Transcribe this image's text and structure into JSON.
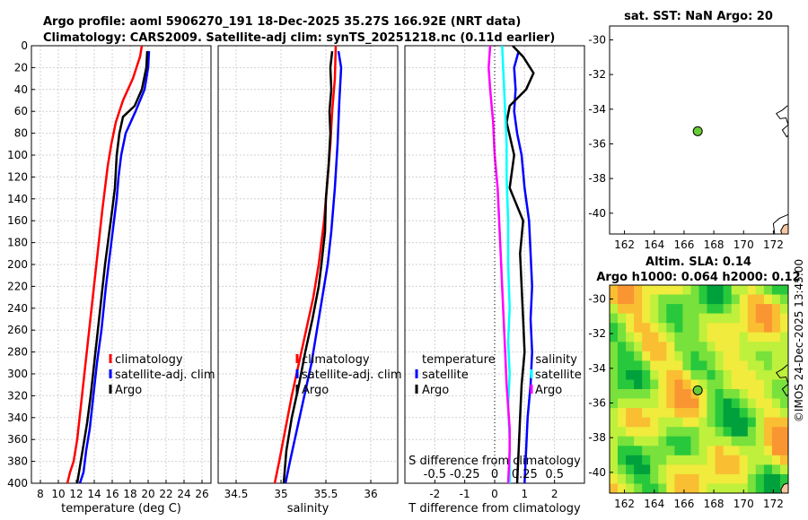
{
  "header": {
    "title_line1": "Argo profile: aoml 5906270_191 18-Dec-2025 35.27S 166.92E (NRT data)",
    "title_line2": "Climatology: CARS2009. Satellite-adj clim: synTS_20251218.nc (0.11d earlier)"
  },
  "colors": {
    "climatology": "#ff0000",
    "satellite": "#0000ff",
    "argo": "#000000",
    "sat_diff_temp": "#ff00ff",
    "sat_diff_sal": "#00ffff",
    "land": "#f7c6a3",
    "grid": "#d0d0d0"
  },
  "chart_data": [
    {
      "type": "line",
      "name": "temperature-profile",
      "xlabel": "temperature (deg C)",
      "xlim": [
        7,
        27
      ],
      "ylim": [
        0,
        400
      ],
      "xticks": [
        8,
        10,
        12,
        14,
        16,
        18,
        20,
        22,
        24,
        26
      ],
      "yticks": [
        0,
        20,
        40,
        60,
        80,
        100,
        120,
        140,
        160,
        180,
        200,
        220,
        240,
        260,
        280,
        300,
        320,
        340,
        360,
        380,
        400
      ],
      "legend": [
        "climatology",
        "satellite-adj. clim",
        "Argo"
      ],
      "series": [
        {
          "name": "climatology",
          "color": "#ff0000",
          "x": [
            19.3,
            19.1,
            18.3,
            17.2,
            16.4,
            15.9,
            15.5,
            15.2,
            14.9,
            14.5,
            14.1,
            13.7,
            13.3,
            12.9,
            12.5,
            12.1,
            11.7,
            11.3,
            11.0
          ],
          "y": [
            0,
            10,
            30,
            50,
            70,
            90,
            110,
            130,
            150,
            180,
            210,
            240,
            270,
            300,
            330,
            360,
            380,
            390,
            400
          ]
        },
        {
          "name": "satellite-adj. clim",
          "color": "#0000ff",
          "x": [
            20.1,
            20.0,
            19.6,
            18.6,
            17.5,
            17.0,
            16.7,
            16.5,
            16.2,
            15.9,
            15.3,
            14.8,
            14.3,
            13.9,
            13.5,
            13.1,
            12.8,
            12.4
          ],
          "y": [
            5,
            20,
            40,
            60,
            80,
            100,
            120,
            140,
            160,
            180,
            220,
            260,
            290,
            320,
            350,
            370,
            390,
            400
          ]
        },
        {
          "name": "Argo",
          "color": "#000000",
          "x": [
            19.9,
            19.8,
            19.3,
            18.5,
            17.2,
            16.8,
            16.5,
            16.3,
            16.0,
            15.6,
            15.2,
            14.8,
            14.4,
            14.0,
            13.6,
            13.2,
            12.8,
            12.4,
            12.1
          ],
          "y": [
            5,
            20,
            40,
            55,
            65,
            80,
            100,
            130,
            150,
            175,
            200,
            230,
            260,
            290,
            320,
            345,
            365,
            385,
            400
          ]
        }
      ]
    },
    {
      "type": "line",
      "name": "salinity-profile",
      "xlabel": "salinity",
      "xlim": [
        34.3,
        36.3
      ],
      "ylim": [
        0,
        400
      ],
      "xticks": [
        34.5,
        35,
        35.5,
        36
      ],
      "legend": [
        "climatology",
        "satellite-adj. clim",
        "Argo"
      ],
      "series": [
        {
          "name": "climatology",
          "color": "#ff0000",
          "x": [
            35.61,
            35.6,
            35.57,
            35.55,
            35.52,
            35.48,
            35.42,
            35.36,
            35.28,
            35.2,
            35.12,
            35.05,
            34.98,
            34.93
          ],
          "y": [
            0,
            30,
            60,
            90,
            120,
            160,
            200,
            230,
            260,
            290,
            320,
            350,
            380,
            400
          ]
        },
        {
          "name": "satellite-adj. clim",
          "color": "#0000ff",
          "x": [
            35.64,
            35.67,
            35.65,
            35.63,
            35.6,
            35.56,
            35.52,
            35.46,
            35.4,
            35.34,
            35.26,
            35.18,
            35.1,
            35.05
          ],
          "y": [
            5,
            20,
            50,
            90,
            130,
            170,
            200,
            230,
            260,
            290,
            320,
            350,
            380,
            400
          ]
        },
        {
          "name": "Argo",
          "color": "#000000",
          "x": [
            35.57,
            35.55,
            35.56,
            35.54,
            35.55,
            35.53,
            35.5,
            35.49,
            35.45,
            35.42,
            35.35,
            35.27,
            35.2,
            35.12,
            35.06,
            35.03
          ],
          "y": [
            5,
            20,
            40,
            60,
            80,
            110,
            140,
            170,
            200,
            220,
            250,
            280,
            310,
            340,
            370,
            400
          ]
        }
      ]
    },
    {
      "type": "line",
      "name": "difference-profile",
      "xlabel": "T difference from climatology",
      "top_label": "S difference from climatology",
      "xlim": [
        -3,
        3
      ],
      "ylim": [
        0,
        400
      ],
      "xticks": [
        -2,
        -1,
        0,
        1,
        2
      ],
      "top_tick_labels": [
        "-0.5",
        "-0.25",
        "0",
        "0.25",
        "0.5"
      ],
      "top_ticks_t_units": [
        -2,
        -1,
        0,
        1,
        2
      ],
      "legend_left": {
        "title": "temperature",
        "items": [
          "satellite",
          "Argo"
        ]
      },
      "legend_right": {
        "title": "salinity",
        "items": [
          "satellite",
          "Argo"
        ]
      },
      "series": [
        {
          "name": "temperature satellite",
          "color": "#0000ff",
          "x": [
            0.8,
            0.65,
            0.7,
            0.65,
            0.75,
            0.9,
            1.0,
            1.15,
            1.2,
            1.25,
            1.2,
            1.25,
            1.2,
            1.1,
            1.05,
            1.0
          ],
          "y": [
            5,
            20,
            40,
            60,
            80,
            100,
            130,
            160,
            190,
            220,
            250,
            280,
            310,
            340,
            370,
            400
          ]
        },
        {
          "name": "temperature Argo",
          "color": "#000000",
          "x": [
            0.6,
            0.95,
            1.3,
            1.05,
            0.5,
            0.4,
            0.65,
            0.5,
            0.95,
            0.85,
            0.9,
            0.95,
            1.0,
            0.9,
            0.85,
            0.8,
            0.75
          ],
          "y": [
            0,
            10,
            25,
            40,
            55,
            70,
            100,
            130,
            160,
            190,
            220,
            250,
            280,
            310,
            340,
            370,
            400
          ]
        },
        {
          "name": "salinity satellite",
          "color": "#00ffff",
          "x": [
            0.25,
            0.3,
            0.35,
            0.4,
            0.4,
            0.45,
            0.45,
            0.5,
            0.45,
            0.5,
            0.45,
            0.5,
            0.5
          ],
          "y": [
            0,
            30,
            60,
            90,
            120,
            160,
            200,
            240,
            270,
            300,
            330,
            360,
            400
          ]
        },
        {
          "name": "salinity Argo",
          "color": "#ff00ff",
          "x": [
            -0.15,
            -0.2,
            -0.15,
            -0.05,
            0.0,
            0.1,
            0.15,
            0.2,
            0.25,
            0.3,
            0.35,
            0.4,
            0.45,
            0.5,
            0.5,
            0.45
          ],
          "y": [
            0,
            20,
            40,
            70,
            100,
            130,
            160,
            190,
            220,
            250,
            280,
            310,
            330,
            350,
            370,
            400
          ]
        }
      ]
    },
    {
      "type": "map",
      "name": "sst-map",
      "title": "sat. SST: NaN Argo: 20",
      "xlim": [
        161,
        173
      ],
      "ylim": [
        -41.2,
        -29.2
      ],
      "xticks": [
        162,
        164,
        166,
        168,
        170,
        172
      ],
      "yticks": [
        -30,
        -32,
        -34,
        -36,
        -38,
        -40
      ],
      "marker": {
        "lon": 166.92,
        "lat": -35.27,
        "color": "#66cc33"
      }
    },
    {
      "type": "heatmap",
      "name": "sla-map",
      "title_line1": "Altim. SLA: 0.14",
      "title_line2": "Argo h1000: 0.064 h2000: 0.12",
      "xlim": [
        161,
        173
      ],
      "ylim": [
        -41.2,
        -29.2
      ],
      "xticks": [
        162,
        164,
        166,
        168,
        170,
        172
      ],
      "yticks": [
        -30,
        -32,
        -34,
        -36,
        -38,
        -40
      ],
      "marker": {
        "lon": 166.92,
        "lat": -35.27,
        "color": "#66cc33"
      }
    }
  ],
  "footer": {
    "credit": "©IMOS 24-Dec-2025 13:45:00"
  }
}
